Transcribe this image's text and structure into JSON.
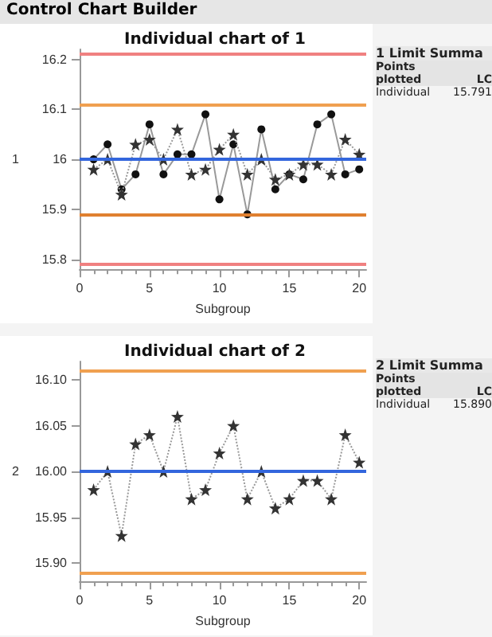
{
  "chart_data": [
    {
      "type": "line",
      "subtitle": "Control Chart Builder",
      "title": "Individual chart of 1",
      "xlabel": "Subgroup",
      "ylabel": "1",
      "x": [
        1,
        2,
        3,
        4,
        5,
        6,
        7,
        8,
        9,
        10,
        11,
        12,
        13,
        14,
        15,
        16,
        17,
        18,
        19,
        20
      ],
      "series": [
        {
          "color": "#111111",
          "marker": "circle",
          "line_style": "solid",
          "values": [
            16.0,
            16.03,
            15.94,
            15.97,
            16.07,
            15.97,
            16.01,
            16.01,
            16.09,
            15.92,
            16.03,
            15.89,
            16.06,
            15.94,
            15.97,
            15.96,
            16.07,
            16.09,
            15.97,
            15.98
          ]
        },
        {
          "color": "#333333",
          "marker": "star",
          "line_style": "dotted",
          "values": [
            15.98,
            16.0,
            15.93,
            16.03,
            16.04,
            16.0,
            16.06,
            15.97,
            15.98,
            16.02,
            16.05,
            15.97,
            16.0,
            15.96,
            15.97,
            15.99,
            15.99,
            15.97,
            16.04,
            16.01
          ]
        }
      ],
      "xlim": [
        0,
        20.5
      ],
      "xticks": [
        0,
        5,
        10,
        15,
        20
      ],
      "ylim": [
        15.78,
        16.22
      ],
      "yticks": [
        15.8,
        15.9,
        16.0,
        16.1,
        16.2
      ],
      "ref_lines": [
        {
          "axis": "y",
          "value": 16.21,
          "color": "#f08080"
        },
        {
          "axis": "y",
          "value": 16.11,
          "color": "#f0a050"
        },
        {
          "axis": "y",
          "value": 16.0,
          "color": "#3366dd"
        },
        {
          "axis": "y",
          "value": 15.89,
          "color": "#e08030"
        },
        {
          "axis": "y",
          "value": 15.79,
          "color": "#f08080"
        }
      ],
      "annotations": [
        "1 Limit Summa",
        "Points plotted",
        "LC",
        "Individual",
        "15.791"
      ]
    },
    {
      "type": "line",
      "title": "Individual chart of 2",
      "xlabel": "Subgroup",
      "ylabel": "2",
      "x": [
        1,
        2,
        3,
        4,
        5,
        6,
        7,
        8,
        9,
        10,
        11,
        12,
        13,
        14,
        15,
        16,
        17,
        18,
        19,
        20
      ],
      "series": [
        {
          "color": "#333333",
          "marker": "star",
          "line_style": "dotted",
          "values": [
            15.98,
            16.0,
            15.93,
            16.03,
            16.04,
            16.0,
            16.06,
            15.97,
            15.98,
            16.02,
            16.05,
            15.97,
            16.0,
            15.96,
            15.97,
            15.99,
            15.99,
            15.97,
            16.04,
            16.01
          ]
        }
      ],
      "xlim": [
        0,
        20.5
      ],
      "xticks": [
        0,
        5,
        10,
        15,
        20
      ],
      "ylim": [
        15.88,
        16.12
      ],
      "yticks": [
        {
          "value": 15.9,
          "label": "15.90"
        },
        {
          "value": 15.95,
          "label": "15.95"
        },
        {
          "value": 16.0,
          "label": "16.00"
        },
        {
          "value": 16.05,
          "label": "16.05"
        },
        {
          "value": 16.1,
          "label": "16.10"
        }
      ],
      "ref_lines": [
        {
          "axis": "y",
          "value": 16.11,
          "color": "#f0a050"
        },
        {
          "axis": "y",
          "value": 16.0,
          "color": "#3366dd"
        },
        {
          "axis": "y",
          "value": 15.89,
          "color": "#f0a050"
        }
      ],
      "annotations": [
        "2 Limit Summa",
        "Points plotted",
        "LC",
        "Individual",
        "15.890"
      ]
    }
  ]
}
